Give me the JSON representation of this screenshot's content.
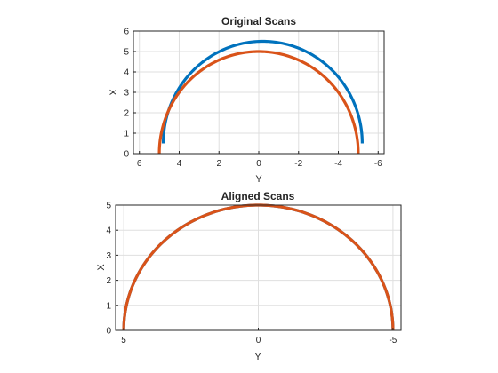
{
  "chart_data": [
    {
      "type": "line",
      "title": "Original Scans",
      "xlabel": "Y",
      "ylabel": "X",
      "xlim": [
        -6.3,
        6.3
      ],
      "x_reversed": true,
      "ylim": [
        0,
        6
      ],
      "xticks": [
        6,
        4,
        2,
        0,
        -2,
        -4,
        -6
      ],
      "yticks": [
        0,
        1,
        2,
        3,
        4,
        5,
        6
      ],
      "grid": true,
      "series": [
        {
          "shape": "semicircle",
          "center_y": -0.2,
          "center_x": 0.5,
          "radius": 5.0,
          "color": "#0072BD"
        },
        {
          "shape": "semicircle",
          "center_y": 0.0,
          "center_x": 0.0,
          "radius": 5.0,
          "color": "#D95319"
        }
      ]
    },
    {
      "type": "line",
      "title": "Aligned Scans",
      "xlabel": "Y",
      "ylabel": "X",
      "xlim": [
        -5.3,
        5.3
      ],
      "x_reversed": true,
      "ylim": [
        0,
        5
      ],
      "xticks": [
        5,
        0,
        -5
      ],
      "yticks": [
        0,
        1,
        2,
        3,
        4,
        5
      ],
      "grid": true,
      "series": [
        {
          "shape": "semicircle",
          "center_y": 0.0,
          "center_x": 0.0,
          "radius": 5.0,
          "color": "#0072BD"
        },
        {
          "shape": "semicircle",
          "center_y": 0.0,
          "center_x": 0.0,
          "radius": 5.0,
          "color": "#D95319"
        }
      ]
    }
  ]
}
